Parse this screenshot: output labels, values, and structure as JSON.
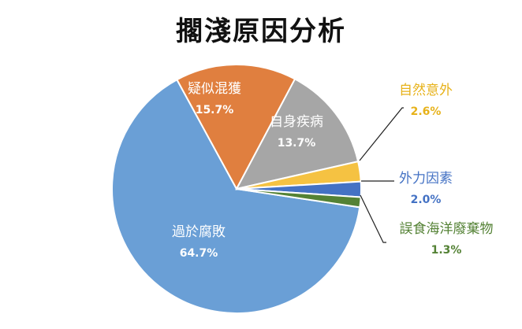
{
  "chart_data": {
    "type": "pie",
    "title": "擱淺原因分析",
    "series": [
      {
        "name": "",
        "values": [
          {
            "label": "過於腐敗",
            "value": 64.7,
            "display": "64.7%",
            "color": "#6a9fd6"
          },
          {
            "label": "疑似混獲",
            "value": 15.7,
            "display": "15.7%",
            "color": "#e07f3f"
          },
          {
            "label": "自身疾病",
            "value": 13.7,
            "display": "13.7%",
            "color": "#a6a6a6"
          },
          {
            "label": "自然意外",
            "value": 2.6,
            "display": "2.6%",
            "color": "#f5c242"
          },
          {
            "label": "外力因素",
            "value": 2.0,
            "display": "2.0%",
            "color": "#4472c4"
          },
          {
            "label": "誤食海洋廢棄物",
            "value": 1.3,
            "display": "1.3%",
            "color": "#548235"
          }
        ]
      }
    ],
    "legend": "none"
  }
}
